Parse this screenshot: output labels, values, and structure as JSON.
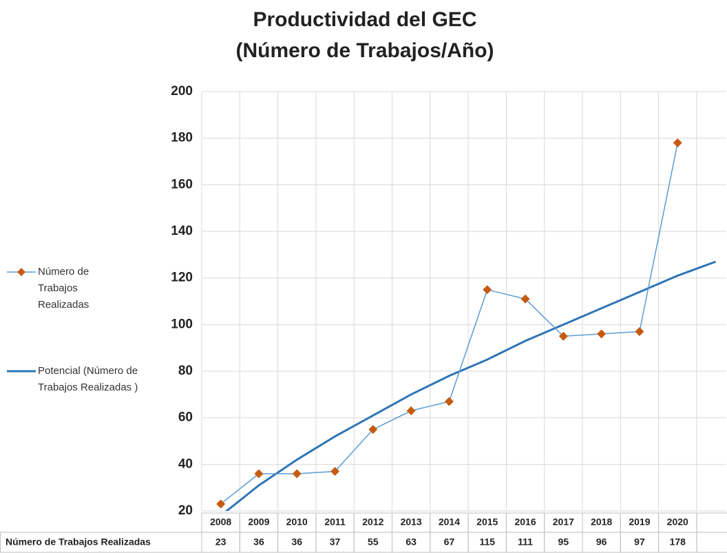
{
  "chart_data": {
    "type": "line",
    "title": "Productividad del GEC",
    "subtitle": "(Número de Trabajos/Año)",
    "categories": [
      "2008",
      "2009",
      "2010",
      "2011",
      "2012",
      "2013",
      "2014",
      "2015",
      "2016",
      "2017",
      "2018",
      "2019",
      "2020",
      null
    ],
    "series": [
      {
        "name": "Número de Trabajos Realizadas",
        "color": "#5b9bd5",
        "marker_color": "#c55a11",
        "values": [
          23,
          36,
          36,
          37,
          55,
          63,
          67,
          115,
          111,
          95,
          96,
          97,
          178,
          null
        ]
      },
      {
        "name": "Potencial (Número de Trabajos Realizadas )",
        "color": "#2e75b6",
        "values": [
          18,
          31,
          42,
          52,
          61,
          70,
          78,
          85,
          93,
          100,
          107,
          114,
          121,
          127
        ]
      }
    ],
    "ylim": [
      20,
      200
    ],
    "yticks": [
      20,
      40,
      60,
      80,
      100,
      120,
      140,
      160,
      180,
      200
    ],
    "grid": true,
    "legend": "left",
    "data_table": true
  }
}
